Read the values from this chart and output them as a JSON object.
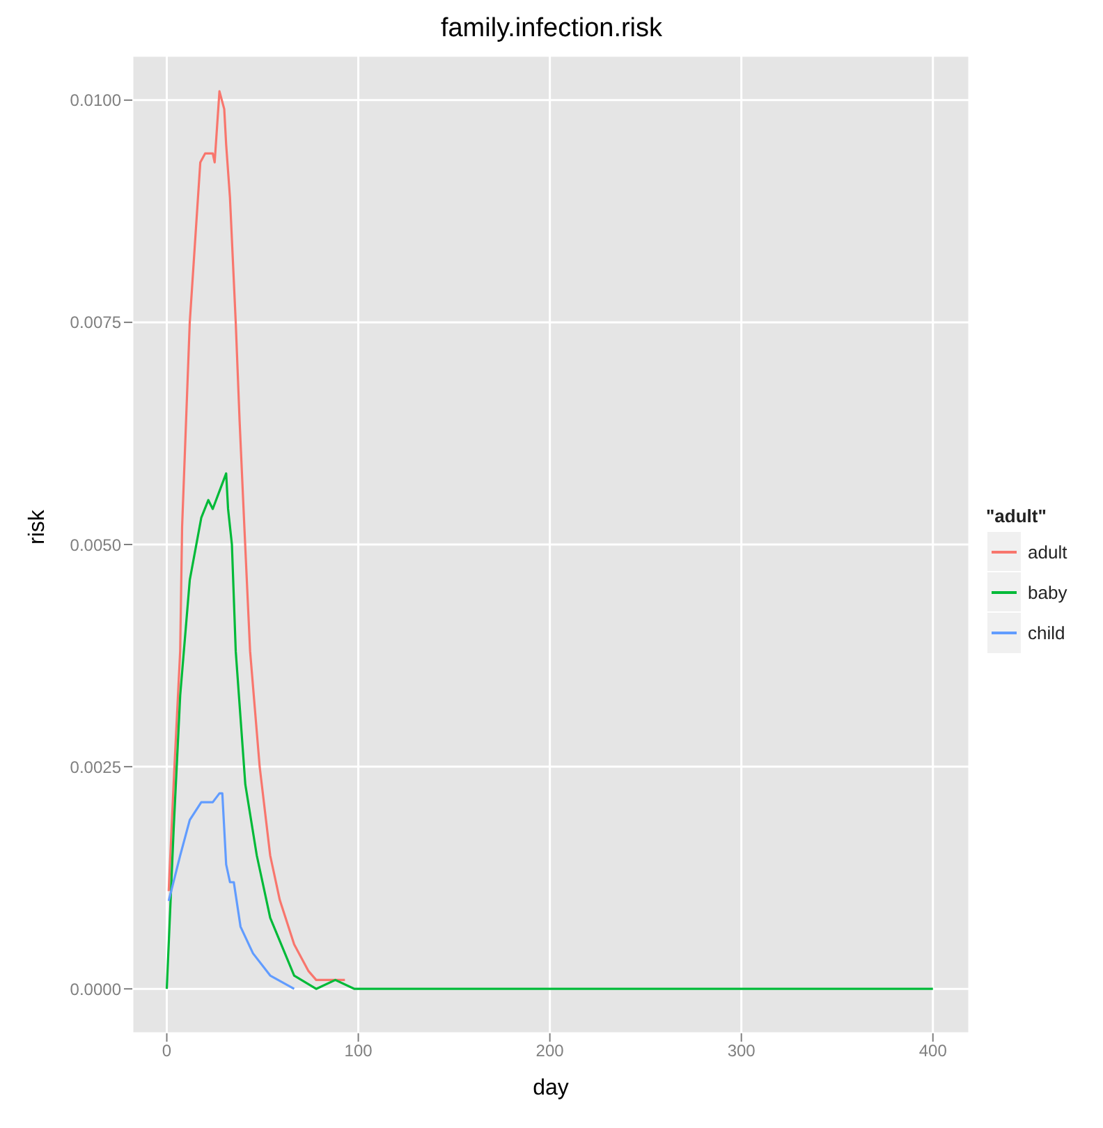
{
  "chart_data": {
    "type": "line",
    "title": "family.infection.risk",
    "xlabel": "day",
    "ylabel": "risk",
    "legend_title": "\"adult\"",
    "legend": "right",
    "grid": true,
    "marker": "none",
    "line_style": "solid",
    "xlim": [
      -18,
      419
    ],
    "xticks": [
      0,
      100,
      200,
      300,
      400
    ],
    "ylim": [
      -0.0005,
      0.0105
    ],
    "yticks": [
      {
        "value": 0,
        "label": "0.0000"
      },
      {
        "value": 0.0025,
        "label": "0.0025"
      },
      {
        "value": 0.005,
        "label": "0.0050"
      },
      {
        "value": 0.0075,
        "label": "0.0075"
      },
      {
        "value": 0.01,
        "label": "0.0100"
      }
    ],
    "series": [
      {
        "name": "adult",
        "color": "#f8766d",
        "x": [
          1,
          4,
          7,
          8,
          12,
          17.5,
          20,
          24,
          25,
          27.5,
          30,
          31,
          33,
          34.5,
          36,
          38,
          40.5,
          43.5,
          48.5,
          54,
          59,
          66.5,
          74,
          78,
          85,
          93
        ],
        "values": [
          0.0011,
          0.0025,
          0.0038,
          0.0052,
          0.0075,
          0.0093,
          0.0094,
          0.0094,
          0.0093,
          0.0101,
          0.0099,
          0.0095,
          0.0089,
          0.0082,
          0.0075,
          0.0064,
          0.0052,
          0.0038,
          0.0025,
          0.0015,
          0.001,
          0.0005,
          0.0002,
          0.0001,
          0.0001,
          0.0001
        ]
      },
      {
        "name": "baby",
        "color": "#00ba38",
        "x": [
          0,
          3.6,
          7,
          12,
          18,
          21.7,
          24,
          27.5,
          31,
          32,
          33,
          34,
          36,
          41,
          47,
          54,
          66.5,
          78,
          88,
          98,
          400
        ],
        "values": [
          0,
          0.0018,
          0.0033,
          0.0046,
          0.0053,
          0.0055,
          0.0054,
          0.0056,
          0.0058,
          0.0054,
          0.0052,
          0.005,
          0.0038,
          0.0023,
          0.0015,
          0.0008,
          0.00015,
          0,
          0.0001,
          0,
          0
        ]
      },
      {
        "name": "child",
        "color": "#619cff",
        "x": [
          1,
          7,
          12,
          18,
          24,
          27.5,
          29,
          31,
          33,
          35,
          38.5,
          45,
          54,
          66.5
        ],
        "values": [
          0.00099,
          0.0015,
          0.0019,
          0.0021,
          0.0021,
          0.0022,
          0.0022,
          0.0014,
          0.0012,
          0.0012,
          0.0007,
          0.0004,
          0.00015,
          0
        ]
      }
    ]
  }
}
